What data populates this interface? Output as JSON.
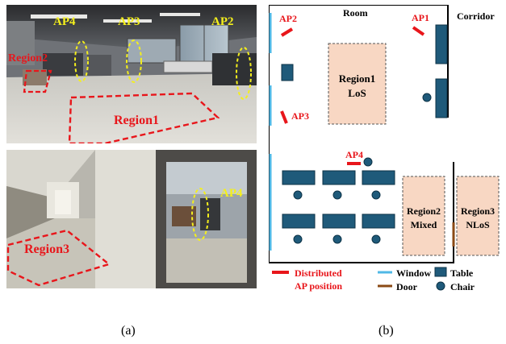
{
  "photo_a_top": {
    "labels": {
      "ap4": "AP4",
      "ap3": "AP3",
      "ap2": "AP2",
      "region2": "Region2",
      "region1": "Region1"
    }
  },
  "photo_a_bottom": {
    "labels": {
      "ap4": "AP4",
      "region3": "Region3"
    }
  },
  "floorplan": {
    "room_label": "Room",
    "corridor_label": "Corridor",
    "ap_labels": {
      "ap1": "AP1",
      "ap2": "AP2",
      "ap3": "AP3",
      "ap4": "AP4"
    },
    "regions": [
      {
        "name": "Region1",
        "type": "LoS"
      },
      {
        "name": "Region2",
        "type": "Mixed"
      },
      {
        "name": "Region3",
        "type": "NLoS"
      }
    ],
    "legend": {
      "ap_line1": "Distributed",
      "ap_line2": "AP position",
      "window": "Window",
      "table": "Table",
      "door": "Door",
      "chair": "Chair"
    }
  },
  "colors": {
    "ap_red": "#e8161b",
    "label_yellow": "#f4ef1c",
    "window_blue": "#4fb8e6",
    "table_fill": "#1f5a7a",
    "region_fill": "#f8d7c3",
    "door_brown": "#8b4a14"
  },
  "captions": {
    "a": "(a)",
    "b": "(b)"
  }
}
